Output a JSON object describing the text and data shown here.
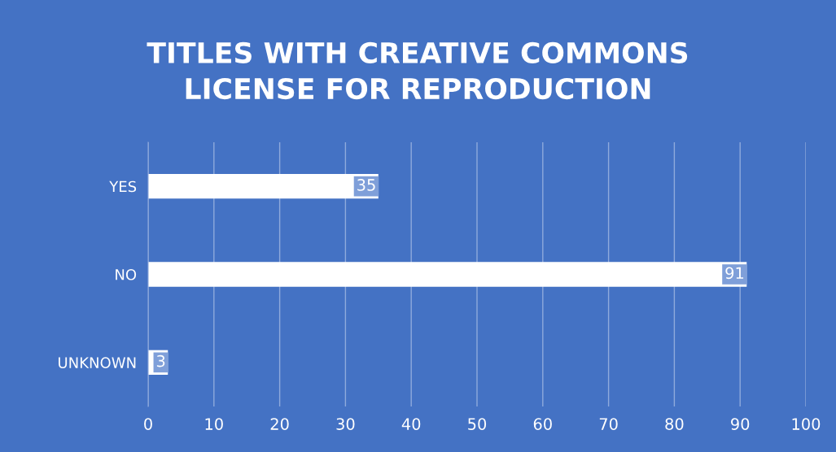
{
  "chart_data": {
    "type": "bar",
    "orientation": "horizontal",
    "title": "TITLES WITH CREATIVE COMMONS\nLICENSE FOR REPRODUCTION",
    "categories": [
      "YES",
      "NO",
      "UNKNOWN"
    ],
    "values": [
      35,
      91,
      3
    ],
    "color": "#ffffff",
    "xlim": [
      0,
      100
    ],
    "xticks": [
      0,
      10,
      20,
      30,
      40,
      50,
      60,
      70,
      80,
      90,
      100
    ],
    "grid": "x",
    "data_labels": true,
    "legend": false
  }
}
